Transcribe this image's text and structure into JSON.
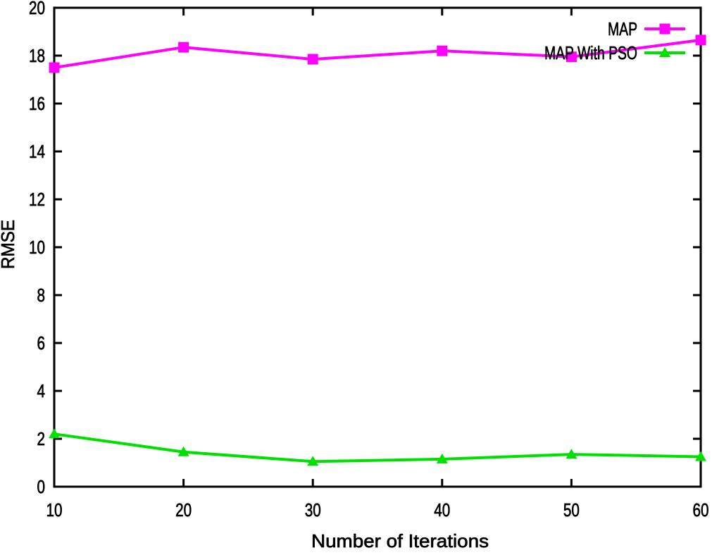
{
  "chart_data": {
    "type": "line",
    "title": "",
    "x": [
      10,
      20,
      30,
      40,
      50,
      60
    ],
    "series": [
      {
        "name": "MAP",
        "color": "#ff00ff",
        "marker": "square",
        "values": [
          17.5,
          18.35,
          17.85,
          18.2,
          17.95,
          18.65
        ]
      },
      {
        "name": "MAP With PSO",
        "color": "#00e000",
        "marker": "triangle",
        "values": [
          2.2,
          1.45,
          1.05,
          1.15,
          1.35,
          1.25
        ]
      }
    ],
    "xlabel": "Number of Iterations",
    "ylabel": "RMSE",
    "xlim": [
      10,
      60
    ],
    "ylim": [
      0,
      20
    ],
    "xticks": [
      10,
      20,
      30,
      40,
      50,
      60
    ],
    "yticks": [
      0,
      2,
      4,
      6,
      8,
      10,
      12,
      14,
      16,
      18,
      20
    ],
    "legend_position": "top-right",
    "grid": false,
    "axis_color": "#000000",
    "background": "#ffffff"
  }
}
